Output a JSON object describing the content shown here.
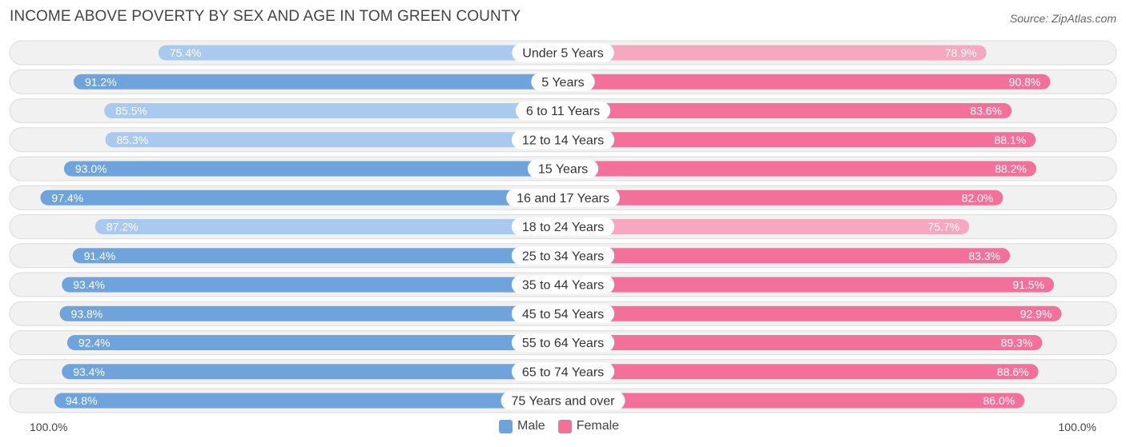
{
  "title": "INCOME ABOVE POVERTY BY SEX AND AGE IN TOM GREEN COUNTY",
  "source": "Source: ZipAtlas.com",
  "colors": {
    "male_dark": "#6fa3dc",
    "male_light": "#a9c9ee",
    "female_dark": "#f3709a",
    "female_light": "#f7a8c1",
    "row_bg": "#f1f1f1",
    "row_border": "#dcdcdc"
  },
  "chart_data": {
    "type": "bar",
    "orientation": "horizontal-diverging",
    "categories": [
      "Under 5 Years",
      "5 Years",
      "6 to 11 Years",
      "12 to 14 Years",
      "15 Years",
      "16 and 17 Years",
      "18 to 24 Years",
      "25 to 34 Years",
      "35 to 44 Years",
      "45 to 54 Years",
      "55 to 64 Years",
      "65 to 74 Years",
      "75 Years and over"
    ],
    "series": [
      {
        "name": "Male",
        "values": [
          75.4,
          91.2,
          85.5,
          85.3,
          93.0,
          97.4,
          87.2,
          91.4,
          93.4,
          93.8,
          92.4,
          93.4,
          94.8
        ],
        "labels": [
          "75.4%",
          "91.2%",
          "85.5%",
          "85.3%",
          "93.0%",
          "97.4%",
          "87.2%",
          "91.4%",
          "93.4%",
          "93.8%",
          "92.4%",
          "93.4%",
          "94.8%"
        ]
      },
      {
        "name": "Female",
        "values": [
          78.9,
          90.8,
          83.6,
          88.1,
          88.2,
          82.0,
          75.7,
          83.3,
          91.5,
          92.9,
          89.3,
          88.6,
          86.0
        ],
        "labels": [
          "78.9%",
          "90.8%",
          "83.6%",
          "88.1%",
          "88.2%",
          "82.0%",
          "75.7%",
          "83.3%",
          "91.5%",
          "92.9%",
          "89.3%",
          "88.6%",
          "86.0%"
        ]
      }
    ],
    "axis_left_label": "100.0%",
    "axis_right_label": "100.0%",
    "xlim": [
      0,
      100
    ],
    "legend": [
      "Male",
      "Female"
    ],
    "legend_position": "bottom-center"
  }
}
